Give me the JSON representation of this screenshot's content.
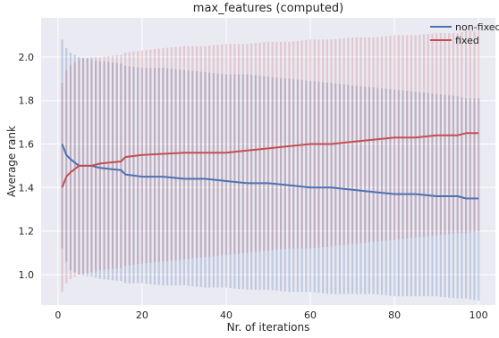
{
  "chart_data": {
    "type": "line",
    "title": "max_features (computed)",
    "xlabel": "Nr. of iterations",
    "ylabel": "Average rank",
    "xlim": [
      -4,
      104
    ],
    "ylim": [
      0.86,
      2.18
    ],
    "xticks": [
      0,
      20,
      40,
      60,
      80,
      100
    ],
    "yticks": [
      1.0,
      1.2,
      1.4,
      1.6,
      1.8,
      2.0
    ],
    "xtick_labels": [
      "0",
      "20",
      "40",
      "60",
      "80",
      "100"
    ],
    "ytick_labels": [
      "1.0",
      "1.2",
      "1.4",
      "1.6",
      "1.8",
      "2.0"
    ],
    "grid": true,
    "background": "#eaeaf2",
    "legend_position": "top-right",
    "error_bars": true,
    "series": [
      {
        "name": "non-fixed",
        "color": "#4c72b0",
        "x": [
          1,
          2,
          3,
          5,
          8,
          10,
          15,
          16,
          20,
          25,
          30,
          35,
          40,
          45,
          50,
          55,
          60,
          65,
          70,
          75,
          80,
          85,
          90,
          95,
          97,
          100
        ],
        "y": [
          1.6,
          1.55,
          1.53,
          1.5,
          1.5,
          1.49,
          1.48,
          1.46,
          1.45,
          1.45,
          1.44,
          1.44,
          1.43,
          1.42,
          1.42,
          1.41,
          1.4,
          1.4,
          1.39,
          1.38,
          1.37,
          1.37,
          1.36,
          1.36,
          1.35,
          1.35
        ],
        "err_low": [
          1.12,
          1.06,
          1.02,
          1.0,
          0.99,
          0.98,
          0.97,
          0.96,
          0.96,
          0.95,
          0.95,
          0.94,
          0.94,
          0.93,
          0.93,
          0.92,
          0.92,
          0.91,
          0.91,
          0.91,
          0.9,
          0.9,
          0.9,
          0.89,
          0.89,
          0.88
        ],
        "err_high": [
          2.08,
          2.04,
          2.02,
          2.0,
          1.99,
          1.98,
          1.97,
          1.96,
          1.95,
          1.95,
          1.94,
          1.93,
          1.92,
          1.92,
          1.91,
          1.9,
          1.89,
          1.88,
          1.87,
          1.86,
          1.85,
          1.84,
          1.83,
          1.82,
          1.81,
          1.81
        ]
      },
      {
        "name": "fixed",
        "color": "#c44e52",
        "x": [
          1,
          2,
          3,
          5,
          8,
          10,
          15,
          16,
          20,
          25,
          30,
          35,
          40,
          45,
          50,
          55,
          60,
          65,
          70,
          75,
          80,
          85,
          90,
          95,
          97,
          100
        ],
        "y": [
          1.4,
          1.45,
          1.47,
          1.5,
          1.5,
          1.51,
          1.52,
          1.54,
          1.55,
          1.555,
          1.56,
          1.56,
          1.56,
          1.57,
          1.58,
          1.59,
          1.6,
          1.6,
          1.61,
          1.62,
          1.63,
          1.63,
          1.64,
          1.64,
          1.65,
          1.65
        ],
        "err_low": [
          0.92,
          0.96,
          0.98,
          1.0,
          1.01,
          1.02,
          1.03,
          1.04,
          1.05,
          1.06,
          1.07,
          1.08,
          1.09,
          1.1,
          1.11,
          1.12,
          1.12,
          1.13,
          1.14,
          1.15,
          1.16,
          1.17,
          1.18,
          1.19,
          1.19,
          1.2
        ],
        "err_high": [
          1.88,
          1.94,
          1.96,
          1.99,
          2.0,
          2.0,
          2.01,
          2.02,
          2.03,
          2.04,
          2.05,
          2.05,
          2.06,
          2.06,
          2.07,
          2.07,
          2.08,
          2.08,
          2.09,
          2.09,
          2.1,
          2.1,
          2.11,
          2.11,
          2.12,
          2.12
        ]
      }
    ]
  }
}
